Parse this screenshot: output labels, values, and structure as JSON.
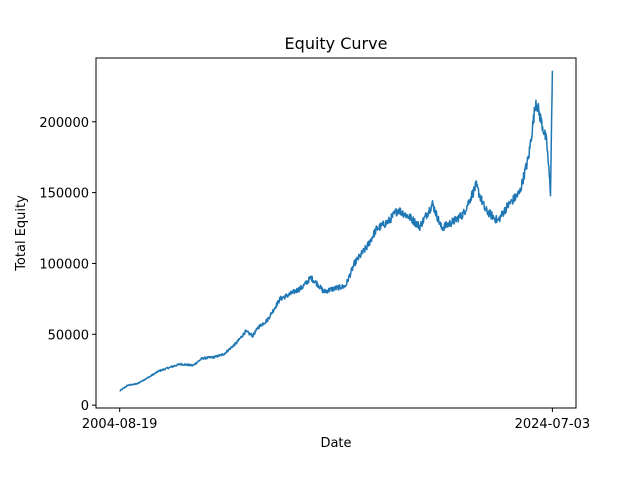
{
  "chart_data": {
    "type": "line",
    "title": "Equity Curve",
    "xlabel": "Date",
    "ylabel": "Total Equity",
    "grid": false,
    "legend": "none",
    "xlim": [
      "2003-07-19",
      "2025-08-03"
    ],
    "ylim": [
      -2000,
      245000
    ],
    "x_ticks": [
      "2004-08-19",
      "2024-07-03"
    ],
    "y_ticks": [
      0,
      50000,
      100000,
      150000,
      200000
    ],
    "y_tick_labels": [
      "0",
      "50000",
      "100000",
      "150000",
      "200000"
    ],
    "series": [
      {
        "color": "#1f77b4",
        "points": [
          [
            "2004-08-19",
            10000
          ],
          [
            "2005-01-01",
            14000
          ],
          [
            "2005-06-01",
            15000
          ],
          [
            "2006-01-01",
            20000
          ],
          [
            "2006-06-01",
            24000
          ],
          [
            "2007-01-01",
            27000
          ],
          [
            "2007-06-01",
            29000
          ],
          [
            "2008-01-01",
            28000
          ],
          [
            "2008-06-01",
            33000
          ],
          [
            "2009-01-01",
            34000
          ],
          [
            "2009-06-01",
            36000
          ],
          [
            "2010-01-01",
            44000
          ],
          [
            "2010-06-01",
            52000
          ],
          [
            "2010-10-01",
            49000
          ],
          [
            "2011-01-01",
            55000
          ],
          [
            "2011-06-01",
            60000
          ],
          [
            "2012-01-01",
            75000
          ],
          [
            "2012-06-01",
            78000
          ],
          [
            "2013-01-01",
            83000
          ],
          [
            "2013-06-01",
            90000
          ],
          [
            "2013-10-01",
            85000
          ],
          [
            "2014-01-01",
            80000
          ],
          [
            "2014-06-01",
            82000
          ],
          [
            "2015-01-01",
            84000
          ],
          [
            "2015-06-01",
            100000
          ],
          [
            "2016-01-01",
            112000
          ],
          [
            "2016-06-01",
            124000
          ],
          [
            "2017-01-01",
            130000
          ],
          [
            "2017-06-01",
            138000
          ],
          [
            "2018-01-01",
            132000
          ],
          [
            "2018-06-01",
            126000
          ],
          [
            "2019-01-01",
            142000
          ],
          [
            "2019-06-01",
            125000
          ],
          [
            "2020-01-01",
            130000
          ],
          [
            "2020-06-01",
            135000
          ],
          [
            "2021-01-01",
            155000
          ],
          [
            "2021-06-01",
            138000
          ],
          [
            "2022-01-01",
            130000
          ],
          [
            "2022-06-01",
            140000
          ],
          [
            "2023-01-01",
            150000
          ],
          [
            "2023-06-01",
            175000
          ],
          [
            "2023-10-01",
            215000
          ],
          [
            "2024-01-01",
            200000
          ],
          [
            "2024-04-01",
            185000
          ],
          [
            "2024-06-01",
            150000
          ],
          [
            "2024-07-03",
            236000
          ]
        ]
      }
    ]
  }
}
